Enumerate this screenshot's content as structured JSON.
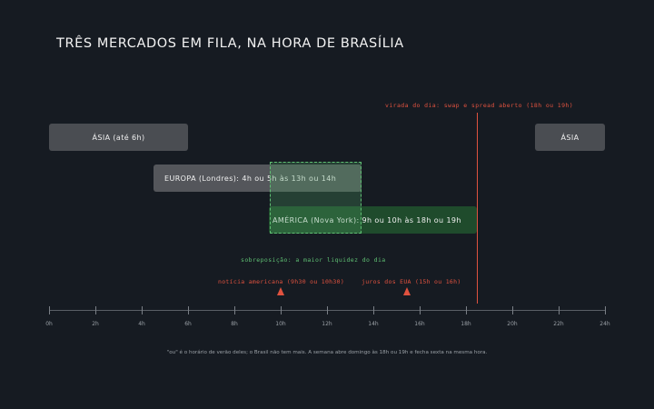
{
  "title": "TRÊS MERCADOS EM FILA, NA HORA DE BRASÍLIA",
  "sessions": {
    "asia_left_label": "ÁSIA (até 6h)",
    "asia_right_label": "ÁSIA",
    "europe_label": "EUROPA (Londres): 4h ou 5h às 13h ou 14h",
    "america_label": "AMÉRICA (Nova York): 9h ou 10h às 18h ou 19h"
  },
  "annotations": {
    "rollover": "virada do dia: swap e spread aberto (18h ou 19h)",
    "overlap": "sobreposição: a maior liquidez do dia",
    "event_us_news": "notícia americana (9h30 ou 10h30)",
    "event_us_rates": "juros dos EUA (15h ou 16h)"
  },
  "axis": {
    "ticks": [
      "0h",
      "2h",
      "4h",
      "6h",
      "8h",
      "10h",
      "12h",
      "14h",
      "16h",
      "18h",
      "20h",
      "22h",
      "24h"
    ]
  },
  "footnote": "\"ou\" é o horário de verão deles; o Brasil não tem mais. A semana abre domingo às 18h ou 19h e fecha sexta na mesma hora.",
  "colors": {
    "background": "#161b22",
    "accent_red": "#e0523f",
    "accent_green": "#5fbf73",
    "america_bar": "#1f4b2c",
    "session_bar": "#4a4d52"
  }
}
